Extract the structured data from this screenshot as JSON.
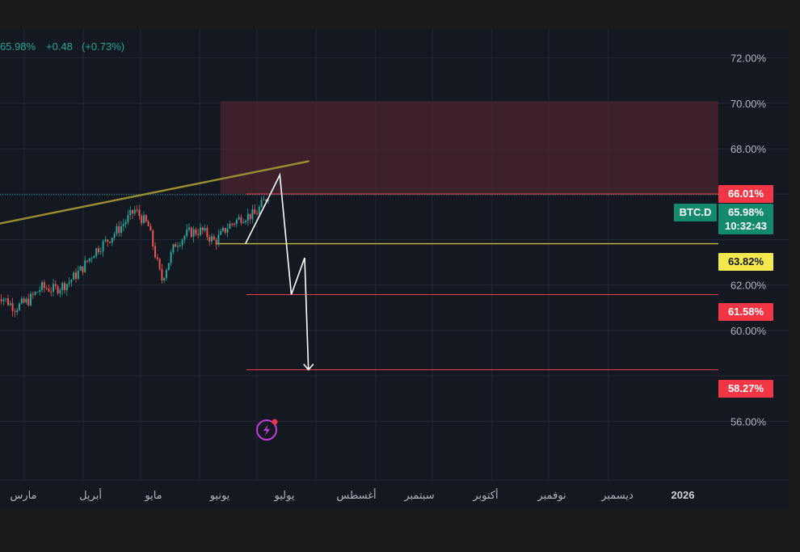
{
  "header": {
    "price": "65.98%",
    "change": "+0.48",
    "change_pct": "(+0.73%)"
  },
  "colors": {
    "frame": "#1b1b1b",
    "panel": "#141821",
    "grid": "#232836",
    "up": "#26a69a",
    "down": "#ef5350",
    "zone": "#4a2430",
    "trendline": "#9a9033",
    "support": "#c9b93a",
    "target": "#ef3b45",
    "projection": "#ffffff",
    "tick_text": "#b2b5be",
    "badge_green": "#138a6e",
    "badge_yellow": "#f3e94c",
    "badge_red": "#f23645",
    "flash_icon": "#c43cd6"
  },
  "y_ticks": [
    "72.00%",
    "70.00%",
    "68.00%",
    "62.00%",
    "60.00%",
    "56.00%"
  ],
  "x_labels": [
    "مارس",
    "أبريل",
    "مايو",
    "يونيو",
    "يوليو",
    "أغسطس",
    "سبتمبر",
    "أكتوبر",
    "نوفمبر",
    "ديسمبر",
    "2026"
  ],
  "badges": {
    "ticker": "BTC.D",
    "current_price": "65.98%",
    "countdown": "10:32:43",
    "resistance": "66.01%",
    "support": "63.82%",
    "target_1": "61.58%",
    "target_2": "58.27%"
  },
  "chart_data": {
    "type": "candlestick",
    "series_label": "BTC.D",
    "y_unit": "%",
    "ylim": [
      55.6,
      73.2
    ],
    "grid": true,
    "legend": "none",
    "last_price": 65.98,
    "change": 0.48,
    "change_pct": 0.73,
    "price_close_trend": [
      {
        "date": "2025-02-17",
        "close": 61.5
      },
      {
        "date": "2025-02-24",
        "close": 61.0
      },
      {
        "date": "2025-03-03",
        "close": 61.3
      },
      {
        "date": "2025-03-10",
        "close": 61.9
      },
      {
        "date": "2025-03-17",
        "close": 61.8
      },
      {
        "date": "2025-03-24",
        "close": 62.1
      },
      {
        "date": "2025-03-31",
        "close": 62.7
      },
      {
        "date": "2025-04-07",
        "close": 63.5
      },
      {
        "date": "2025-04-14",
        "close": 64.0
      },
      {
        "date": "2025-04-21",
        "close": 64.6
      },
      {
        "date": "2025-04-28",
        "close": 65.3
      },
      {
        "date": "2025-05-05",
        "close": 64.6
      },
      {
        "date": "2025-05-12",
        "close": 62.2
      },
      {
        "date": "2025-05-19",
        "close": 63.8
      },
      {
        "date": "2025-05-26",
        "close": 64.3
      },
      {
        "date": "2025-06-02",
        "close": 64.4
      },
      {
        "date": "2025-06-09",
        "close": 63.9
      },
      {
        "date": "2025-06-16",
        "close": 64.6
      },
      {
        "date": "2025-06-23",
        "close": 65.0
      },
      {
        "date": "2025-06-30",
        "close": 65.1
      },
      {
        "date": "2025-07-07",
        "close": 65.98
      }
    ],
    "levels": [
      {
        "price": 66.01,
        "label": "66.01%"
      },
      {
        "price": 63.82,
        "label": "63.82%"
      },
      {
        "price": 61.58,
        "label": "61.58%"
      },
      {
        "price": 58.27,
        "label": "58.27%"
      }
    ],
    "resistance_zone": {
      "from": 66.01,
      "to": 70.1
    },
    "trendline": [
      {
        "date": "2025-02-01",
        "price": 64.45
      },
      {
        "date": "2025-07-28",
        "price": 67.45
      }
    ],
    "projection_path": [
      {
        "date": "2025-06-25",
        "price": 63.82
      },
      {
        "date": "2025-07-08",
        "price": 66.0
      },
      {
        "date": "2025-07-13",
        "price": 66.85
      },
      {
        "date": "2025-07-19",
        "price": 61.58
      },
      {
        "date": "2025-07-26",
        "price": 63.2
      },
      {
        "date": "2025-07-28",
        "price": 58.27
      }
    ]
  }
}
